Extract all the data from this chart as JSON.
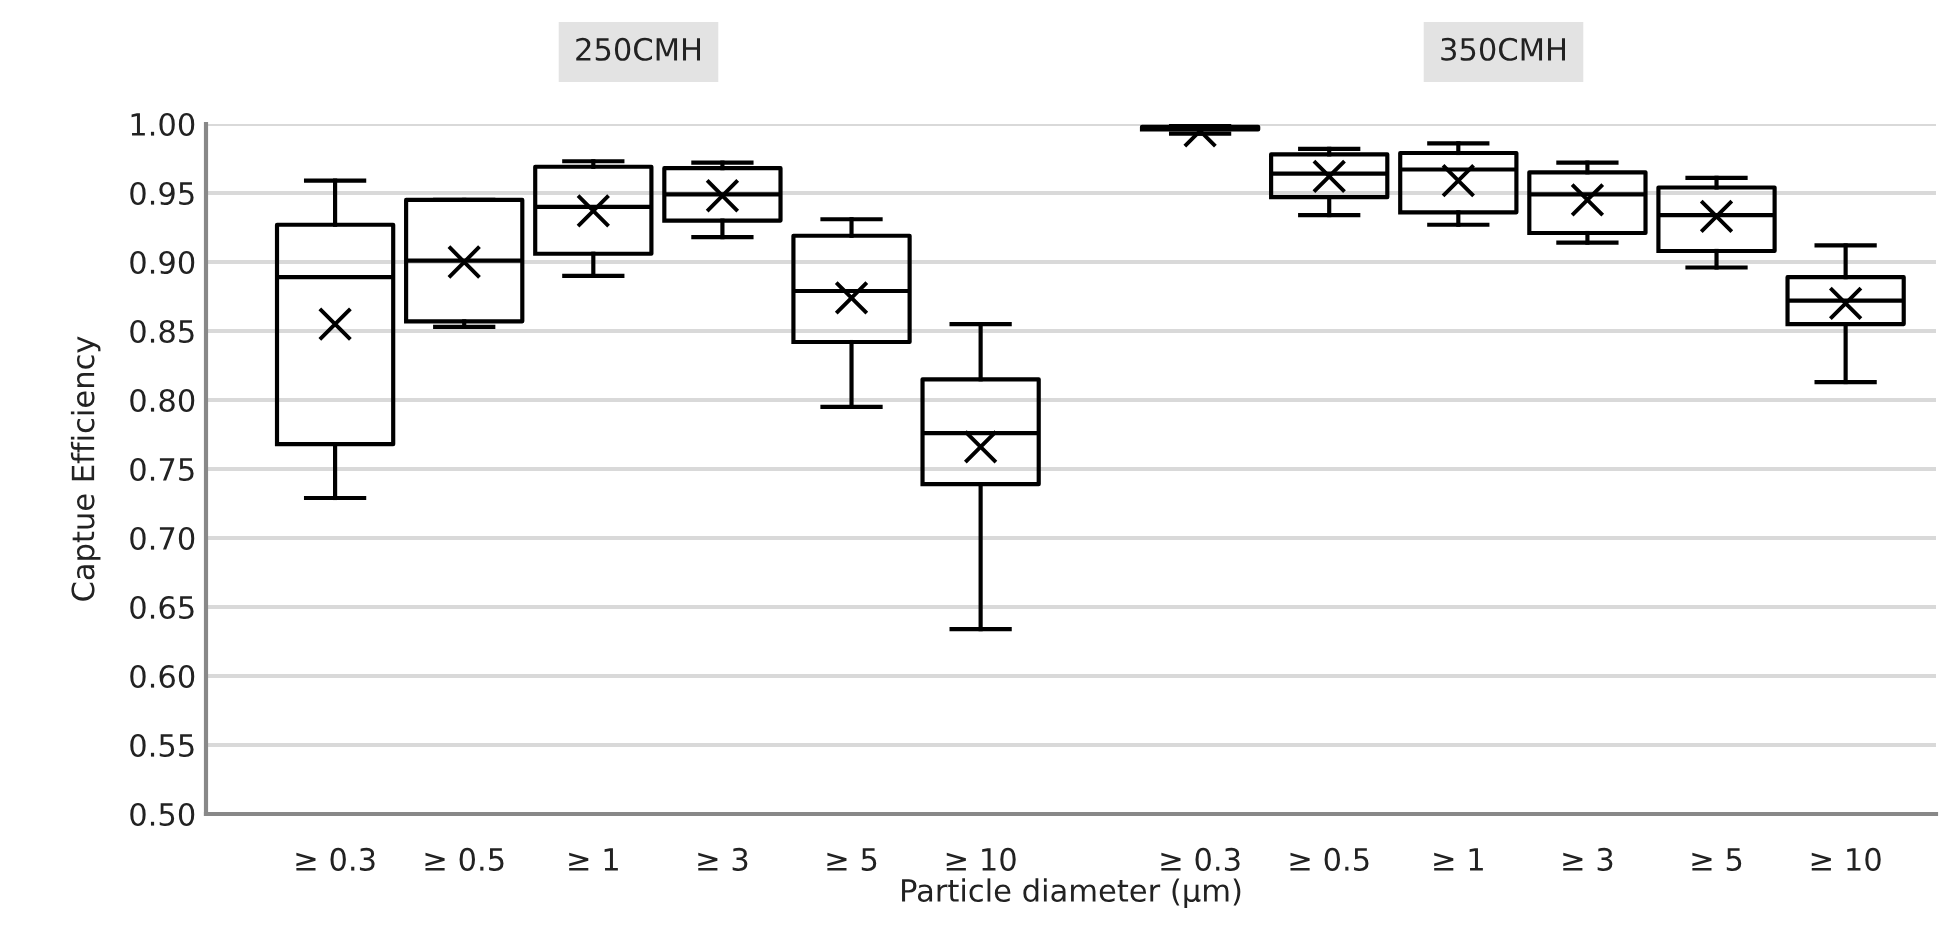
{
  "chart_data": [
    {
      "type": "box",
      "title": "250CMH",
      "ylabel": "Captue Efficiency",
      "xlabel": "Particle diameter (µm)",
      "categories": [
        "≥ 0.3",
        "≥ 0.5",
        "≥ 1",
        "≥ 3",
        "≥ 5",
        "≥ 10"
      ],
      "ylim": [
        0.5,
        1.0
      ],
      "yticks": [
        {
          "value": 0.5,
          "label": "0.50"
        },
        {
          "value": 0.55,
          "label": "0.55"
        },
        {
          "value": 0.6,
          "label": "0.60"
        },
        {
          "value": 0.65,
          "label": "0.65"
        },
        {
          "value": 0.7,
          "label": "0.70"
        },
        {
          "value": 0.75,
          "label": "0.75"
        },
        {
          "value": 0.8,
          "label": "0.80"
        },
        {
          "value": 0.85,
          "label": "0.85"
        },
        {
          "value": 0.9,
          "label": "0.90"
        },
        {
          "value": 0.95,
          "label": "0.95"
        },
        {
          "value": 1.0,
          "label": "1.00"
        }
      ],
      "grid": "y",
      "color": "#000000",
      "boxes": [
        {
          "low": 0.729,
          "q1": 0.768,
          "median": 0.889,
          "q3": 0.927,
          "high": 0.959,
          "mean": 0.855
        },
        {
          "low": 0.853,
          "q1": 0.857,
          "median": 0.901,
          "q3": 0.945,
          "high": 0.945,
          "mean": 0.9
        },
        {
          "low": 0.89,
          "q1": 0.906,
          "median": 0.94,
          "q3": 0.969,
          "high": 0.973,
          "mean": 0.937
        },
        {
          "low": 0.918,
          "q1": 0.93,
          "median": 0.949,
          "q3": 0.968,
          "high": 0.972,
          "mean": 0.948
        },
        {
          "low": 0.795,
          "q1": 0.842,
          "median": 0.879,
          "q3": 0.919,
          "high": 0.931,
          "mean": 0.874
        },
        {
          "low": 0.634,
          "q1": 0.739,
          "median": 0.776,
          "q3": 0.815,
          "high": 0.855,
          "mean": 0.766
        }
      ]
    },
    {
      "type": "box",
      "title": "350CMH",
      "categories": [
        "≥ 0.3",
        "≥ 0.5",
        "≥ 1",
        "≥ 3",
        "≥ 5",
        "≥ 10"
      ],
      "ylim": [
        0.5,
        1.0
      ],
      "yticks": [
        0.5,
        0.55,
        0.6,
        0.65,
        0.7,
        0.75,
        0.8,
        0.85,
        0.9,
        0.95,
        1.0
      ],
      "tick_labels": "x",
      "grid": "y",
      "color": "#000000",
      "boxes": [
        {
          "low": 0.993,
          "q1": 0.996,
          "median": 0.997,
          "q3": 0.998,
          "high": 1.0,
          "mean": 0.995
        },
        {
          "low": 0.934,
          "q1": 0.947,
          "median": 0.964,
          "q3": 0.978,
          "high": 0.982,
          "mean": 0.962
        },
        {
          "low": 0.927,
          "q1": 0.936,
          "median": 0.967,
          "q3": 0.979,
          "high": 0.986,
          "mean": 0.959
        },
        {
          "low": 0.914,
          "q1": 0.921,
          "median": 0.949,
          "q3": 0.965,
          "high": 0.972,
          "mean": 0.945
        },
        {
          "low": 0.896,
          "q1": 0.908,
          "median": 0.934,
          "q3": 0.954,
          "high": 0.961,
          "mean": 0.933
        },
        {
          "low": 0.813,
          "q1": 0.855,
          "median": 0.872,
          "q3": 0.889,
          "high": 0.912,
          "mean": 0.87
        }
      ]
    }
  ]
}
